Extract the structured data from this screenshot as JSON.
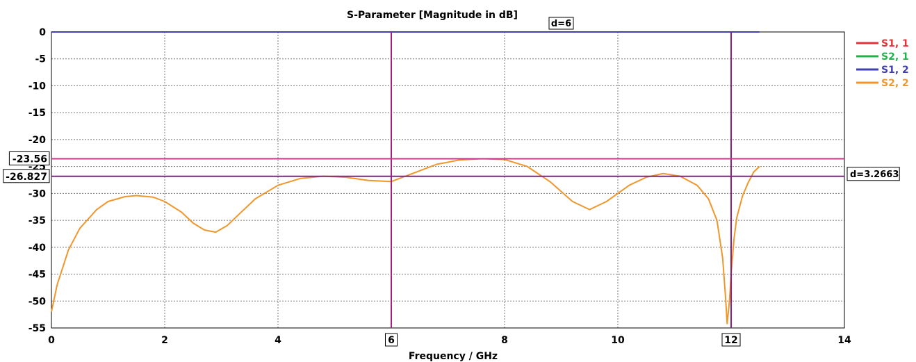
{
  "chart_data": {
    "type": "line",
    "title": "S-Parameter [Magnitude in dB]",
    "xlabel": "Frequency / GHz",
    "ylabel": "",
    "xlim": [
      0,
      14
    ],
    "ylim": [
      -55,
      0
    ],
    "x_ticks": [
      0,
      2,
      4,
      6,
      8,
      10,
      12,
      14
    ],
    "y_ticks": [
      0,
      -5,
      -10,
      -15,
      -20,
      -25,
      -30,
      -35,
      -40,
      -45,
      -50,
      -55
    ],
    "grid": true,
    "legend_position": "right",
    "series": [
      {
        "name": "S1, 1",
        "color": "#e8303a",
        "x": [],
        "y": []
      },
      {
        "name": "S2, 1",
        "color": "#22b14c",
        "x": [],
        "y": []
      },
      {
        "name": "S1, 2",
        "color": "#3f3fb0",
        "x": [
          0,
          12.5
        ],
        "y": [
          0,
          0
        ]
      },
      {
        "name": "S2, 2",
        "color": "#f0962a",
        "x": [
          0.0,
          0.1,
          0.3,
          0.5,
          0.8,
          1.0,
          1.3,
          1.5,
          1.8,
          2.0,
          2.3,
          2.5,
          2.7,
          2.9,
          3.1,
          3.3,
          3.6,
          4.0,
          4.4,
          4.8,
          5.2,
          5.6,
          6.0,
          6.4,
          6.8,
          7.2,
          7.6,
          8.0,
          8.4,
          8.8,
          9.2,
          9.5,
          9.8,
          10.2,
          10.5,
          10.8,
          11.1,
          11.4,
          11.6,
          11.75,
          11.85,
          11.9,
          11.93,
          11.97,
          12.0,
          12.05,
          12.1,
          12.2,
          12.3,
          12.4,
          12.5
        ],
        "y": [
          -52.0,
          -47.0,
          -40.5,
          -36.5,
          -33.0,
          -31.5,
          -30.6,
          -30.4,
          -30.7,
          -31.5,
          -33.5,
          -35.5,
          -36.8,
          -37.2,
          -36.0,
          -34.0,
          -31.0,
          -28.5,
          -27.2,
          -26.8,
          -27.0,
          -27.6,
          -27.8,
          -26.2,
          -24.6,
          -23.8,
          -23.56,
          -23.7,
          -25.0,
          -27.8,
          -31.5,
          -33.0,
          -31.5,
          -28.5,
          -27.0,
          -26.3,
          -26.8,
          -28.5,
          -31.0,
          -35.0,
          -42.0,
          -49.0,
          -54.2,
          -50.0,
          -45.0,
          -38.5,
          -34.5,
          -30.5,
          -28.0,
          -26.0,
          -25.0
        ]
      }
    ],
    "markers": {
      "vertical": [
        {
          "x": 6,
          "label": "6",
          "color": "#a21f7e"
        },
        {
          "x": 12,
          "label": "12",
          "color": "#8a2080"
        }
      ],
      "horizontal": [
        {
          "y": -23.56,
          "label": "-23.56",
          "color": "#c43a8a"
        },
        {
          "y": -26.827,
          "label": "-26.827",
          "color": "#7a2a7e"
        }
      ],
      "delta_x_label": "d=6",
      "delta_y_label": "d=3.2663"
    }
  }
}
